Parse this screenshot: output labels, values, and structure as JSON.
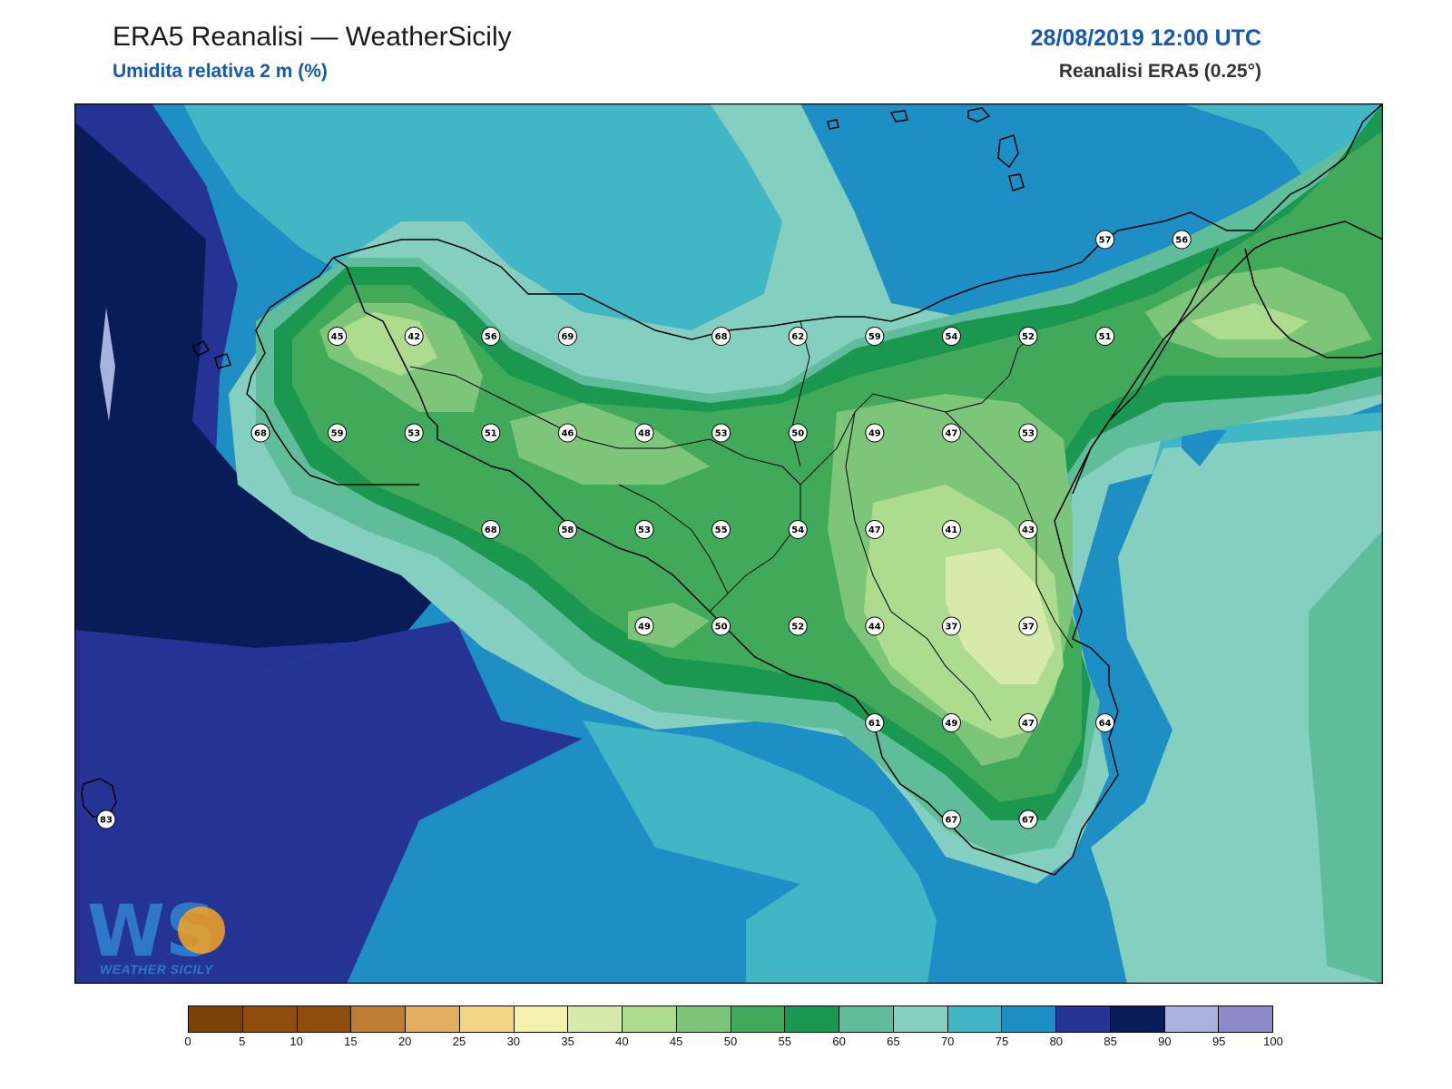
{
  "header": {
    "title": "ERA5 Reanalisi — WeatherSicily",
    "subtitle": "Umidita relativa 2 m (%)",
    "datetime": "28/08/2019 12:00 UTC",
    "source": "Reanalisi ERA5 (0.25°)"
  },
  "logo": {
    "text": "WEATHER SICILY",
    "mark": "WS"
  },
  "colorbar": {
    "ticks": [
      "0",
      "5",
      "10",
      "15",
      "20",
      "25",
      "30",
      "35",
      "40",
      "45",
      "50",
      "55",
      "60",
      "65",
      "70",
      "75",
      "80",
      "85",
      "90",
      "95",
      "100"
    ],
    "colors": [
      "#7a4409",
      "#8e4d0c",
      "#8e4d0c",
      "#be7d30",
      "#e0ae5e",
      "#f2d685",
      "#f5f2ad",
      "#d6ebaa",
      "#aedc8e",
      "#7dc679",
      "#40aa5a",
      "#1a9850",
      "#5fbd9c",
      "#84cfbf",
      "#41b6c4",
      "#1e8fc4",
      "#253494",
      "#081d58",
      "#a7b3dc",
      "#8d8ac8"
    ]
  },
  "stations": [
    {
      "v": "45",
      "c": 1,
      "r": 1
    },
    {
      "v": "42",
      "c": 2,
      "r": 1
    },
    {
      "v": "56",
      "c": 3,
      "r": 1
    },
    {
      "v": "69",
      "c": 4,
      "r": 1
    },
    {
      "v": "68",
      "c": 6,
      "r": 1
    },
    {
      "v": "62",
      "c": 7,
      "r": 1
    },
    {
      "v": "59",
      "c": 8,
      "r": 1
    },
    {
      "v": "54",
      "c": 9,
      "r": 1
    },
    {
      "v": "52",
      "c": 10,
      "r": 1
    },
    {
      "v": "51",
      "c": 11,
      "r": 1
    },
    {
      "v": "57",
      "c": 11,
      "r": 0
    },
    {
      "v": "56",
      "c": 12,
      "r": 0
    },
    {
      "v": "68",
      "c": 0,
      "r": 2
    },
    {
      "v": "59",
      "c": 1,
      "r": 2
    },
    {
      "v": "53",
      "c": 2,
      "r": 2
    },
    {
      "v": "51",
      "c": 3,
      "r": 2
    },
    {
      "v": "46",
      "c": 4,
      "r": 2
    },
    {
      "v": "48",
      "c": 5,
      "r": 2
    },
    {
      "v": "53",
      "c": 6,
      "r": 2
    },
    {
      "v": "50",
      "c": 7,
      "r": 2
    },
    {
      "v": "49",
      "c": 8,
      "r": 2
    },
    {
      "v": "47",
      "c": 9,
      "r": 2
    },
    {
      "v": "53",
      "c": 10,
      "r": 2
    },
    {
      "v": "68",
      "c": 3,
      "r": 3
    },
    {
      "v": "58",
      "c": 4,
      "r": 3
    },
    {
      "v": "53",
      "c": 5,
      "r": 3
    },
    {
      "v": "55",
      "c": 6,
      "r": 3
    },
    {
      "v": "54",
      "c": 7,
      "r": 3
    },
    {
      "v": "47",
      "c": 8,
      "r": 3
    },
    {
      "v": "41",
      "c": 9,
      "r": 3
    },
    {
      "v": "43",
      "c": 10,
      "r": 3
    },
    {
      "v": "49",
      "c": 5,
      "r": 4
    },
    {
      "v": "50",
      "c": 6,
      "r": 4
    },
    {
      "v": "52",
      "c": 7,
      "r": 4
    },
    {
      "v": "44",
      "c": 8,
      "r": 4
    },
    {
      "v": "37",
      "c": 9,
      "r": 4
    },
    {
      "v": "37",
      "c": 10,
      "r": 4
    },
    {
      "v": "61",
      "c": 8,
      "r": 5
    },
    {
      "v": "49",
      "c": 9,
      "r": 5
    },
    {
      "v": "47",
      "c": 10,
      "r": 5
    },
    {
      "v": "64",
      "c": 11,
      "r": 5
    },
    {
      "v": "67",
      "c": 9,
      "r": 6
    },
    {
      "v": "67",
      "c": 10,
      "r": 6
    },
    {
      "v": "83",
      "c": -1,
      "r": 6
    }
  ]
}
